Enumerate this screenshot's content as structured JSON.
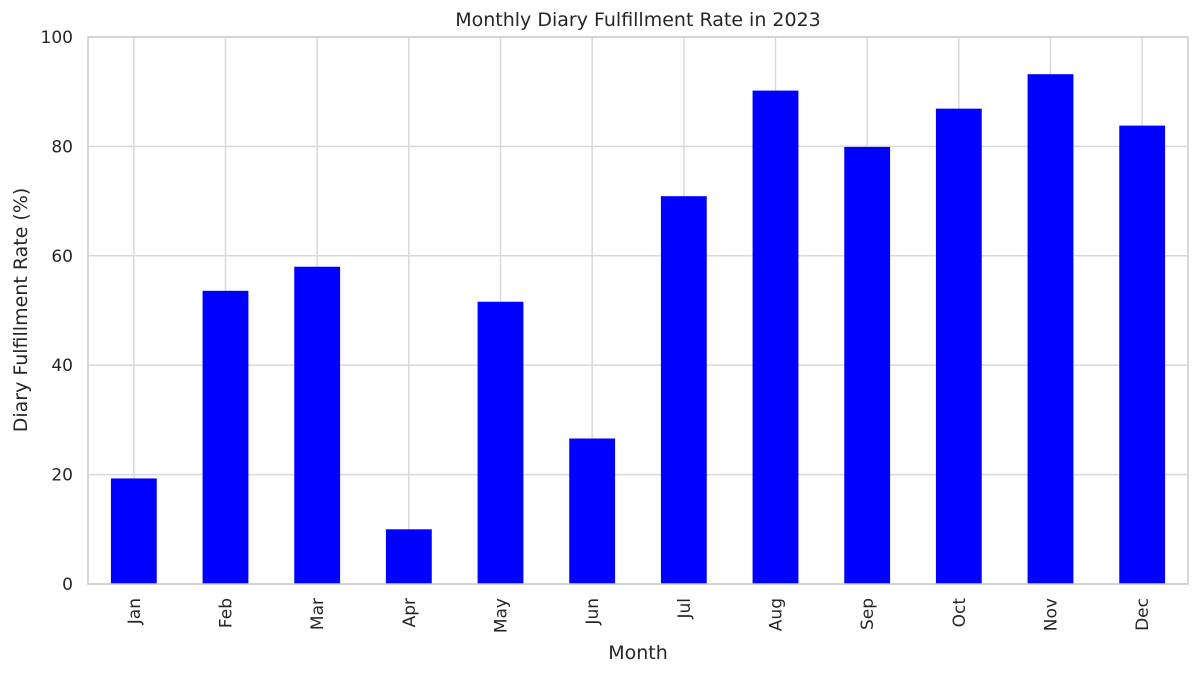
{
  "chart_data": {
    "type": "bar",
    "title": "Monthly Diary Fulfillment Rate in 2023",
    "xlabel": "Month",
    "ylabel": "Diary Fulfillment Rate (%)",
    "categories": [
      "Jan",
      "Feb",
      "Mar",
      "Apr",
      "May",
      "Jun",
      "Jul",
      "Aug",
      "Sep",
      "Oct",
      "Nov",
      "Dec"
    ],
    "values": [
      19.3,
      53.6,
      58.0,
      10.0,
      51.6,
      26.6,
      70.9,
      90.2,
      79.9,
      86.9,
      93.2,
      83.8
    ],
    "ylim": [
      0,
      100
    ],
    "yticks": [
      0,
      20,
      40,
      60,
      80,
      100
    ],
    "grid": true,
    "bar_color": "#0000ff",
    "grid_color": "#d9d9d9",
    "frame_color": "#cccccc",
    "text_color": "#262626"
  }
}
